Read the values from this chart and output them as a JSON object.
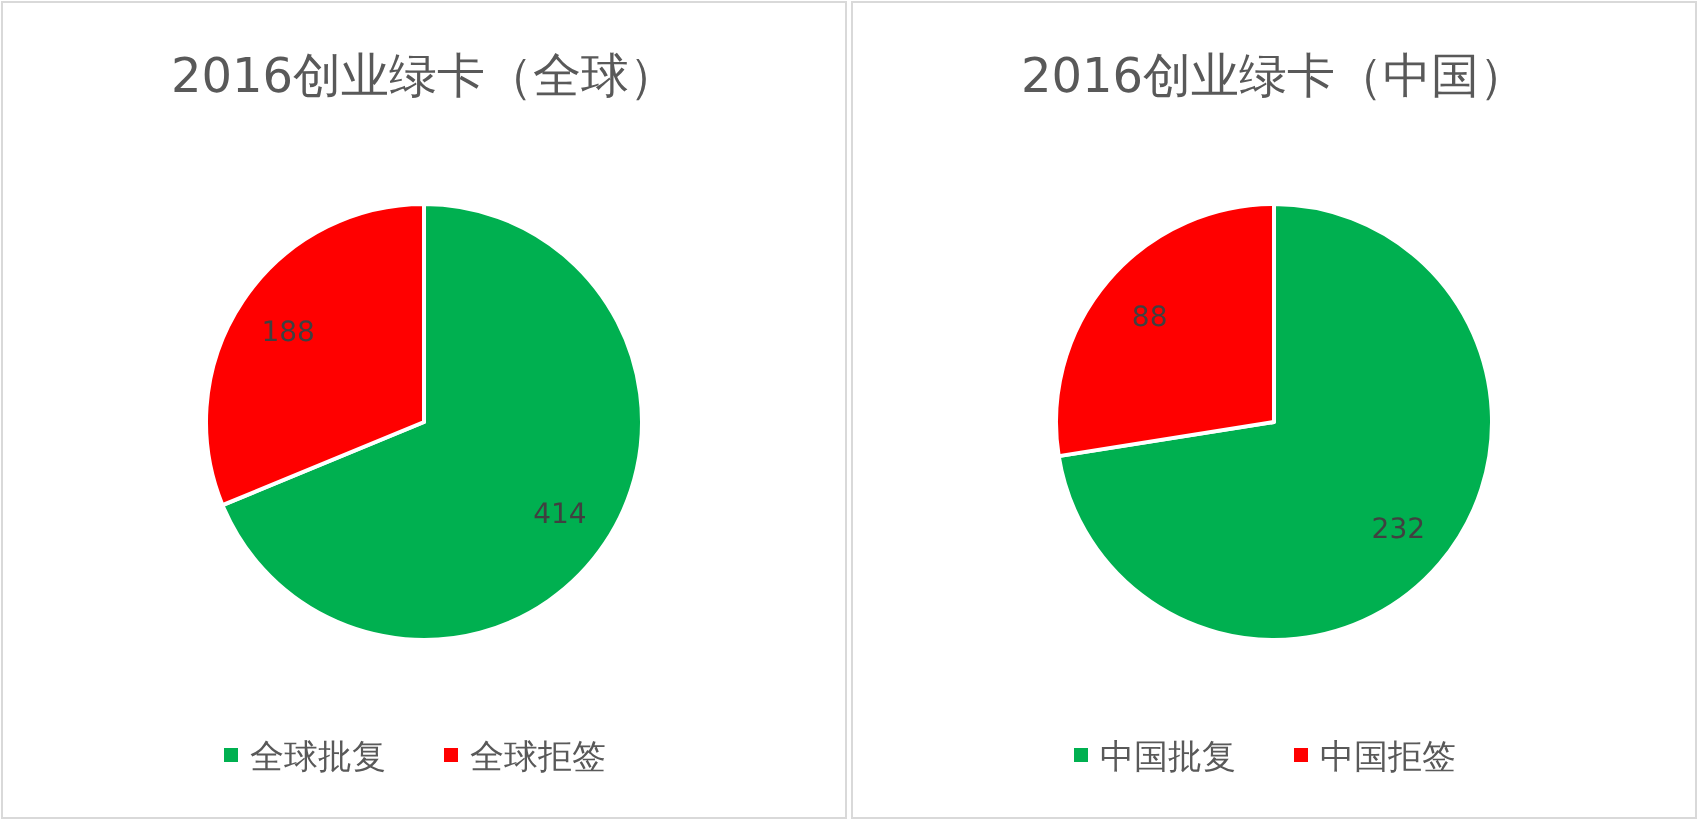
{
  "chart_data": [
    {
      "type": "pie",
      "title": "2016创业绿卡（全球）",
      "categories": [
        "全球批复",
        "全球拒签"
      ],
      "values": [
        414,
        188
      ],
      "colors": [
        "#00b050",
        "#ff0000"
      ],
      "data_labels": true,
      "legend": "bottom"
    },
    {
      "type": "pie",
      "title": "2016创业绿卡（中国）",
      "categories": [
        "中国批复",
        "中国拒签"
      ],
      "values": [
        232,
        88
      ],
      "colors": [
        "#00b050",
        "#ff0000"
      ],
      "data_labels": true,
      "legend": "bottom"
    }
  ]
}
